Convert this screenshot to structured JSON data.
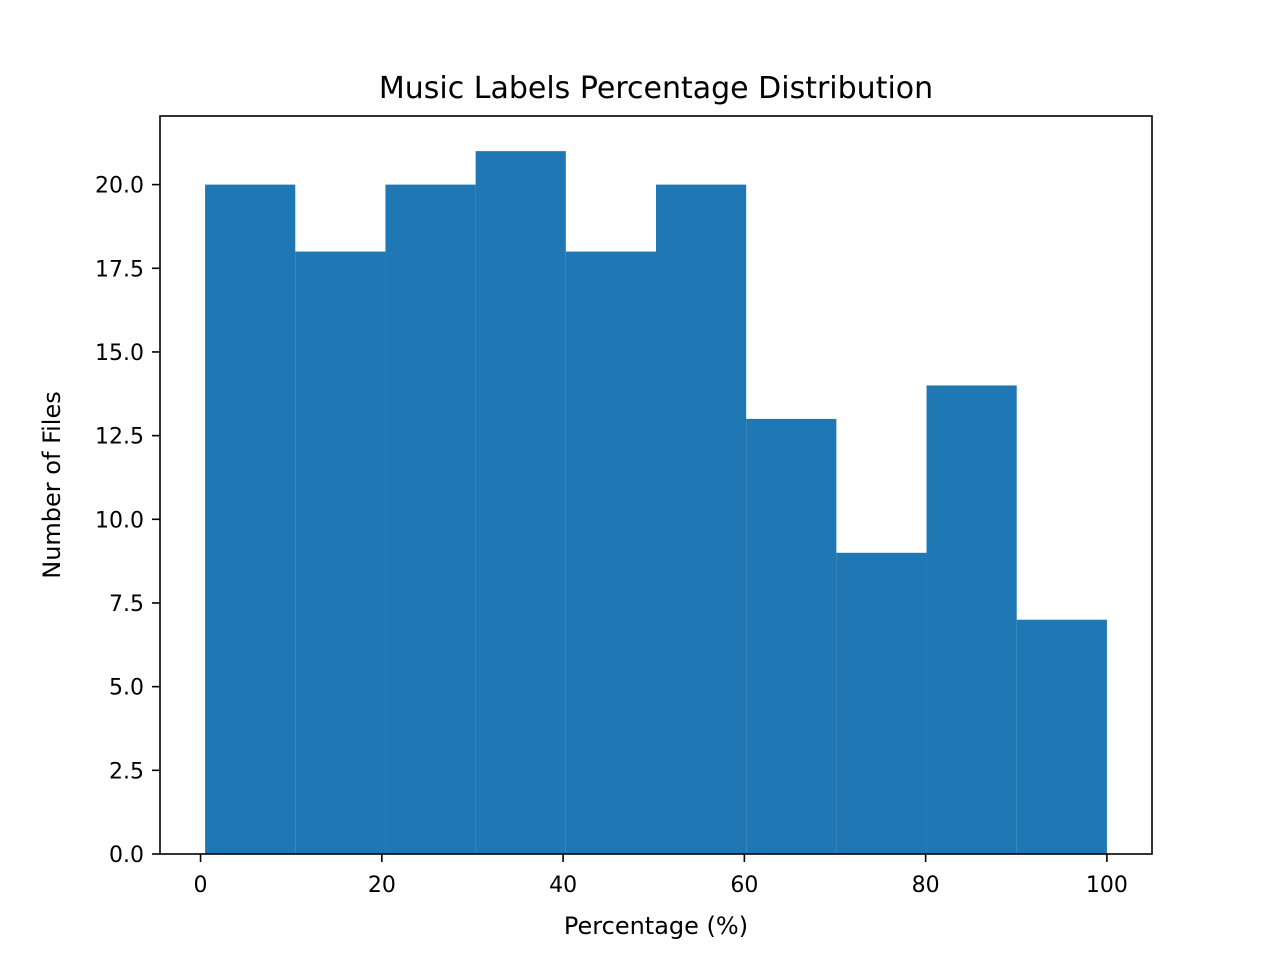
{
  "chart_data": {
    "type": "bar",
    "subtype": "histogram",
    "title": "Music Labels Percentage Distribution",
    "xlabel": "Percentage (%)",
    "ylabel": "Number of Files",
    "bin_edges": [
      0.5,
      10.45,
      20.4,
      30.35,
      40.3,
      50.25,
      60.2,
      70.15,
      80.1,
      90.05,
      100
    ],
    "values": [
      20,
      18,
      20,
      21,
      18,
      20,
      13,
      9,
      14,
      7
    ],
    "xlim": [
      -4.475,
      104.975
    ],
    "ylim": [
      0,
      22.05
    ],
    "x_ticks": [
      0,
      20,
      40,
      60,
      80,
      100
    ],
    "x_tick_labels": [
      "0",
      "20",
      "40",
      "60",
      "80",
      "100"
    ],
    "y_ticks": [
      0,
      2.5,
      5,
      7.5,
      10,
      12.5,
      15,
      17.5,
      20
    ],
    "y_tick_labels": [
      "0.0",
      "2.5",
      "5.0",
      "7.5",
      "10.0",
      "12.5",
      "15.0",
      "17.5",
      "20.0"
    ],
    "grid": false,
    "legend": "none",
    "bar_color": "#1f77b4"
  }
}
